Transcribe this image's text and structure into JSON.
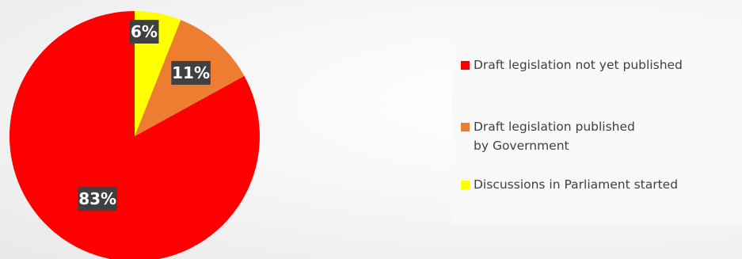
{
  "chart_data": {
    "type": "pie",
    "title": "",
    "categories": [
      "Draft legislation not yet published",
      "Draft legislation published by Government",
      "Discussions in Parliament started"
    ],
    "values": [
      83,
      11,
      6
    ],
    "unit": "%",
    "data_labels": [
      "83%",
      "11%",
      "6%"
    ],
    "colors": [
      "#ff0000",
      "#ed7d31",
      "#ffff00"
    ],
    "legend_position": "right",
    "start_angle": "12 o'clock",
    "direction": "counterclockwise"
  },
  "legend": {
    "items": [
      {
        "label": "Draft legislation not yet published",
        "color": "#ff0000"
      },
      {
        "label": "Draft legislation published by Government",
        "color": "#ed7d31"
      },
      {
        "label": "Discussions in Parliament started",
        "color": "#ffff00"
      }
    ]
  }
}
